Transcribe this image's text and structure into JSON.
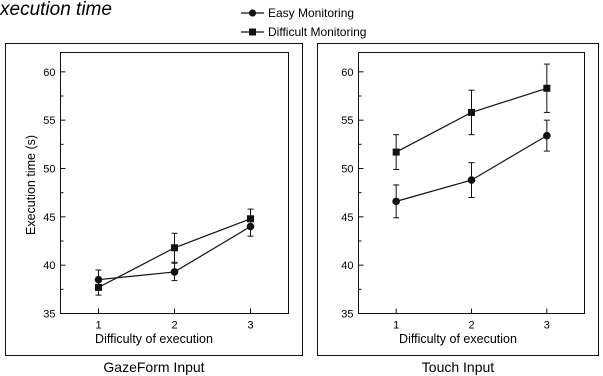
{
  "title": "xecution time",
  "legend": {
    "easy": "Easy Monitoring",
    "difficult": "Difficult Monitoring"
  },
  "chart_data": [
    {
      "type": "line",
      "title": "GazeForm Input",
      "xlabel": "Difficulty of execution",
      "ylabel": "Execution time (s)",
      "categories": [
        "1",
        "2",
        "3"
      ],
      "x": [
        1,
        2,
        3
      ],
      "xlim": [
        0.5,
        3.5
      ],
      "ylim": [
        35,
        62
      ],
      "yticks": [
        35,
        40,
        45,
        50,
        55,
        60
      ],
      "grid": false,
      "legend_position": "top-center",
      "series": [
        {
          "name": "Easy Monitoring",
          "marker": "circle",
          "values": [
            38.5,
            39.3,
            44.0
          ],
          "error": [
            1.0,
            0.9,
            1.0
          ]
        },
        {
          "name": "Difficult Monitoring",
          "marker": "square",
          "values": [
            37.7,
            41.8,
            44.8
          ],
          "error": [
            0.8,
            1.5,
            1.0
          ]
        }
      ]
    },
    {
      "type": "line",
      "title": "Touch Input",
      "xlabel": "Difficulty of execution",
      "ylabel": "",
      "categories": [
        "1",
        "2",
        "3"
      ],
      "x": [
        1,
        2,
        3
      ],
      "xlim": [
        0.5,
        3.5
      ],
      "ylim": [
        35,
        62
      ],
      "yticks": [
        35,
        40,
        45,
        50,
        55,
        60
      ],
      "grid": false,
      "legend_position": "top-center",
      "series": [
        {
          "name": "Easy Monitoring",
          "marker": "circle",
          "values": [
            46.6,
            48.8,
            53.4
          ],
          "error": [
            1.7,
            1.8,
            1.6
          ]
        },
        {
          "name": "Difficult Monitoring",
          "marker": "square",
          "values": [
            51.7,
            55.8,
            58.3
          ],
          "error": [
            1.8,
            2.3,
            2.5
          ]
        }
      ]
    }
  ]
}
